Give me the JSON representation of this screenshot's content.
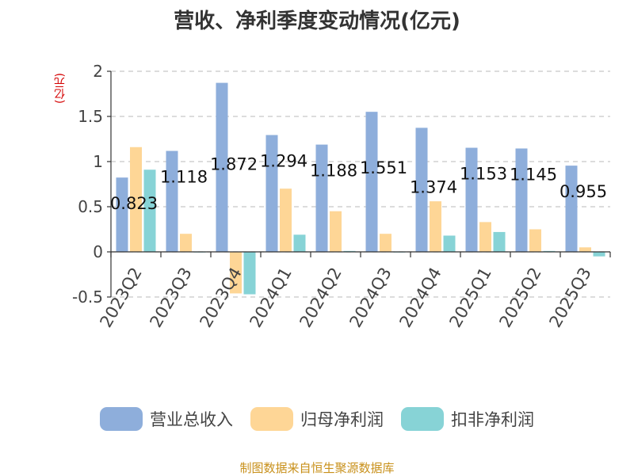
{
  "chart_data": {
    "type": "bar",
    "title": "营收、净利季度变动情况(亿元)",
    "ylabel": "(亿元)",
    "xlabel": "",
    "ylim": [
      -0.5,
      2
    ],
    "yticks": [
      2,
      1.5,
      1,
      0.5,
      0,
      -0.5
    ],
    "ytick_labels": [
      "2",
      "1.5",
      "1",
      "0.5",
      "0",
      "-0.5"
    ],
    "grid": true,
    "legend_position": "bottom",
    "categories": [
      "2023Q2",
      "2023Q3",
      "2023Q4",
      "2024Q1",
      "2024Q2",
      "2024Q3",
      "2024Q4",
      "2025Q1",
      "2025Q2",
      "2025Q3"
    ],
    "series": [
      {
        "name": "营业总收入",
        "color": "#8eaedb",
        "values": [
          0.823,
          1.118,
          1.872,
          1.294,
          1.188,
          1.551,
          1.374,
          1.153,
          1.145,
          0.955
        ],
        "labels": [
          "0.823",
          "1.118",
          "1.872",
          "1.294",
          "1.188",
          "1.551",
          "1.374",
          "1.153",
          "1.145",
          "0.955"
        ]
      },
      {
        "name": "归母净利润",
        "color": "#fed696",
        "values": [
          1.16,
          0.2,
          -0.46,
          0.7,
          0.45,
          0.2,
          0.56,
          0.33,
          0.25,
          0.05
        ]
      },
      {
        "name": "扣非净利润",
        "color": "#87d3d6",
        "values": [
          0.91,
          0.0,
          -0.47,
          0.19,
          0.01,
          0.0,
          0.18,
          0.22,
          0.01,
          -0.05
        ]
      }
    ],
    "source": "制图数据来自恒生聚源数据库"
  }
}
